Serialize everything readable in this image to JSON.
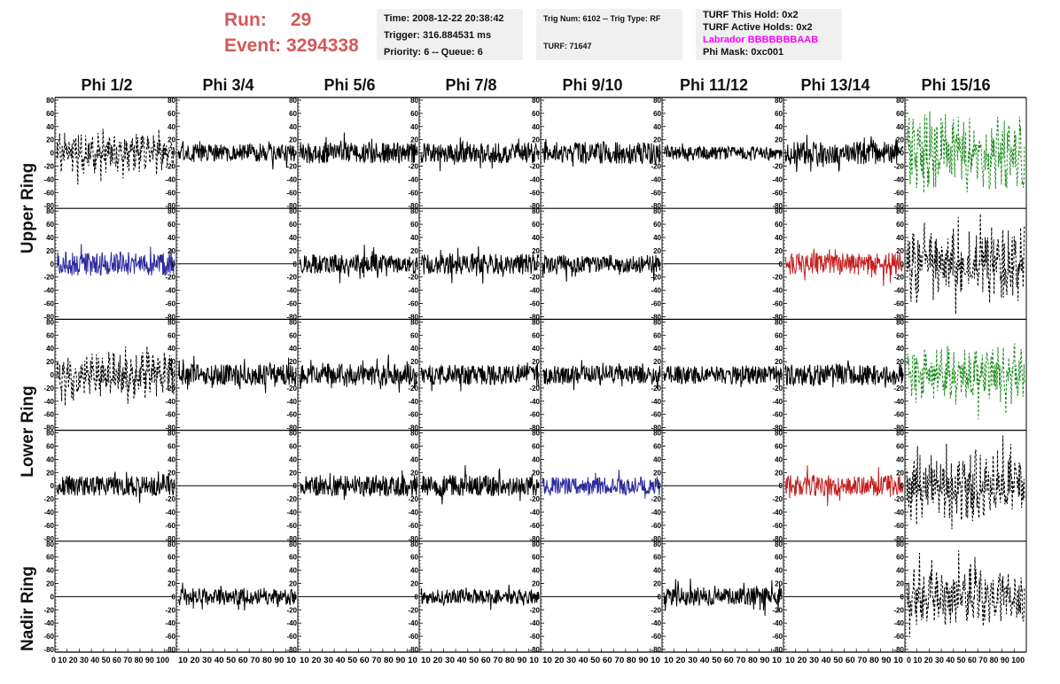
{
  "header": {
    "run_label": "Run:",
    "run_value": "29",
    "event_label": "Event:",
    "event_value": "3294338"
  },
  "info_time": {
    "time": "Time: 2008-12-22 20:38:42",
    "trigger": "Trigger: 316.884531 ms",
    "priority": "Priority: 6 -- Queue: 6"
  },
  "info_trig": {
    "trig": "Trig Num: 6102 -- Trig Type: RF",
    "turf": "TURF: 71647"
  },
  "info_turf": {
    "this_hold": "TURF This Hold: 0x2",
    "active_holds": "TURF Active Holds: 0x2",
    "labrador": "Labrador BBBBBBBAAB",
    "phi_mask": "Phi Mask: 0xc001"
  },
  "chart_data": {
    "type": "line",
    "columns": [
      "Phi 1/2",
      "Phi 3/4",
      "Phi 5/6",
      "Phi 7/8",
      "Phi 9/10",
      "Phi 11/12",
      "Phi 13/14",
      "Phi 15/16"
    ],
    "row_groups": [
      "Upper Ring",
      "Lower Ring",
      "Nadir Ring"
    ],
    "ylim": [
      -80,
      80
    ],
    "yticks": [
      80,
      60,
      40,
      20,
      0,
      -20,
      -40,
      -60,
      -80
    ],
    "xlim": [
      0,
      100
    ],
    "xtick_labels": [
      "0",
      "10",
      "20",
      "30",
      "40",
      "50",
      "60",
      "70",
      "80",
      "90",
      "100"
    ],
    "x_axis_text": {
      "first": "0 10 20 30 40 50 60 70 80 90 100",
      "inner": "10 20 30 40 50 60 70 80 90 10"
    },
    "colors": {
      "black": "#000000",
      "blue": "#2b2b9e",
      "red": "#c42020",
      "green": "#1e8c1e"
    },
    "panels": [
      [
        {
          "style": "dashed",
          "color": "black",
          "amp": 22
        },
        {
          "style": "solid",
          "color": "black",
          "amp": 14
        },
        {
          "style": "solid",
          "color": "black",
          "amp": 16
        },
        {
          "style": "solid",
          "color": "black",
          "amp": 15
        },
        {
          "style": "solid",
          "color": "black",
          "amp": 17
        },
        {
          "style": "solid",
          "color": "black",
          "amp": 10
        },
        {
          "style": "solid",
          "color": "black",
          "amp": 17
        },
        {
          "style": "dashed",
          "color": "green",
          "amp": 40
        }
      ],
      [
        {
          "style": "solid",
          "color": "blue",
          "amp": 18
        },
        {
          "style": "flat",
          "color": "black",
          "amp": 0
        },
        {
          "style": "solid",
          "color": "black",
          "amp": 15
        },
        {
          "style": "solid",
          "color": "black",
          "amp": 16
        },
        {
          "style": "solid",
          "color": "black",
          "amp": 14
        },
        {
          "style": "flat",
          "color": "black",
          "amp": 0
        },
        {
          "style": "solid",
          "color": "red",
          "amp": 17
        },
        {
          "style": "dashed",
          "color": "black",
          "amp": 40
        }
      ],
      [
        {
          "style": "dashed",
          "color": "black",
          "amp": 25
        },
        {
          "style": "solid",
          "color": "black",
          "amp": 16
        },
        {
          "style": "solid",
          "color": "black",
          "amp": 17
        },
        {
          "style": "solid",
          "color": "black",
          "amp": 15
        },
        {
          "style": "solid",
          "color": "black",
          "amp": 14
        },
        {
          "style": "solid",
          "color": "black",
          "amp": 14
        },
        {
          "style": "solid",
          "color": "black",
          "amp": 16
        },
        {
          "style": "dashed",
          "color": "green",
          "amp": 32
        }
      ],
      [
        {
          "style": "solid",
          "color": "black",
          "amp": 15
        },
        {
          "style": "flat",
          "color": "black",
          "amp": 0
        },
        {
          "style": "solid",
          "color": "black",
          "amp": 16
        },
        {
          "style": "solid",
          "color": "black",
          "amp": 16
        },
        {
          "style": "solid",
          "color": "blue",
          "amp": 13
        },
        {
          "style": "flat",
          "color": "black",
          "amp": 0
        },
        {
          "style": "solid",
          "color": "red",
          "amp": 16
        },
        {
          "style": "dashed",
          "color": "black",
          "amp": 38
        }
      ],
      [
        {
          "style": "flat",
          "color": "black",
          "amp": 0
        },
        {
          "style": "solid",
          "color": "black",
          "amp": 13
        },
        {
          "style": "flat",
          "color": "black",
          "amp": 0
        },
        {
          "style": "solid",
          "color": "black",
          "amp": 11
        },
        {
          "style": "flat",
          "color": "black",
          "amp": 0
        },
        {
          "style": "solid",
          "color": "black",
          "amp": 14
        },
        {
          "style": "flat",
          "color": "black",
          "amp": 0
        },
        {
          "style": "dashed",
          "color": "black",
          "amp": 30
        }
      ]
    ]
  }
}
